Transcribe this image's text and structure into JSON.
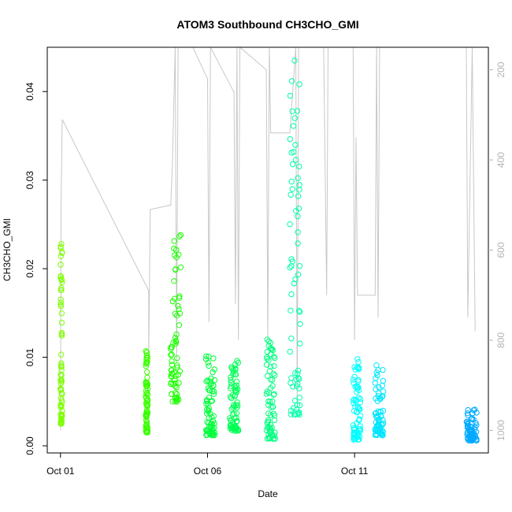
{
  "chart_data": {
    "type": "scatter",
    "title": "ATOM3 Southbound CH3CHO_GMI",
    "xlabel": "Date",
    "ylabel": "CH3CHO_GMI",
    "x_ticks": [
      {
        "day": 1,
        "label": "Oct 01"
      },
      {
        "day": 6,
        "label": "Oct 06"
      },
      {
        "day": 11,
        "label": "Oct 11"
      }
    ],
    "xlim": [
      0.55,
      15.55
    ],
    "ylim": [
      -0.0008,
      0.045
    ],
    "y_ticks": [
      "0.00",
      "0.01",
      "0.02",
      "0.03",
      "0.04"
    ],
    "y2_label_color": "#b3b3b3",
    "y2_ticks": [
      "200",
      "400",
      "600",
      "800",
      "1000"
    ],
    "y2_axis": {
      "label": "",
      "reversed": true,
      "lim": [
        150,
        1050
      ]
    },
    "series": [
      {
        "x_range": [
          1.0,
          1.06
        ],
        "ylow": 0.0025,
        "yhigh": 0.0228,
        "color": "#7FFF00"
      },
      {
        "x_range": [
          3.9,
          3.97
        ],
        "ylow": 0.0015,
        "yhigh": 0.0107,
        "color": "#39FF00"
      },
      {
        "x_range": [
          4.75,
          5.1
        ],
        "ylow": 0.005,
        "yhigh": 0.0238,
        "color": "#1CFF00"
      },
      {
        "x_range": [
          5.95,
          6.25
        ],
        "ylow": 0.0012,
        "yhigh": 0.0101,
        "color": "#00FF3A"
      },
      {
        "x_range": [
          6.75,
          7.05
        ],
        "ylow": 0.0017,
        "yhigh": 0.0096,
        "color": "#00FF55"
      },
      {
        "x_range": [
          8.0,
          8.3
        ],
        "ylow": 0.0008,
        "yhigh": 0.012,
        "color": "#00FF80"
      },
      {
        "x_range": [
          8.8,
          9.15
        ],
        "ylow": 0.0035,
        "yhigh": 0.0435,
        "color": "#00FFA8"
      },
      {
        "x_range": [
          10.95,
          11.2
        ],
        "ylow": 0.0007,
        "yhigh": 0.0098,
        "color": "#00FFFF"
      },
      {
        "x_range": [
          11.7,
          11.98
        ],
        "ylow": 0.0012,
        "yhigh": 0.0091,
        "color": "#00E5FF"
      },
      {
        "x_range": [
          14.8,
          15.15
        ],
        "ylow": 0.0006,
        "yhigh": 0.0041,
        "color": "#00AAFF"
      }
    ],
    "altitude_line": {
      "color": "#c8c8c8",
      "points": [
        [
          1.0,
          1000
        ],
        [
          1.02,
          500
        ],
        [
          1.06,
          310
        ],
        [
          4.0,
          690
        ],
        [
          4.0,
          850
        ],
        [
          4.05,
          510
        ],
        [
          4.75,
          500
        ],
        [
          4.8,
          420
        ],
        [
          4.9,
          150
        ],
        [
          4.95,
          850
        ],
        [
          5.0,
          150
        ],
        [
          5.5,
          150
        ],
        [
          6.0,
          220
        ],
        [
          6.05,
          760
        ],
        [
          6.1,
          150
        ],
        [
          6.9,
          250
        ],
        [
          6.95,
          720
        ],
        [
          7.0,
          150
        ],
        [
          7.05,
          800
        ],
        [
          7.1,
          150
        ],
        [
          8.0,
          200
        ],
        [
          8.05,
          800
        ],
        [
          8.1,
          150
        ],
        [
          8.15,
          340
        ],
        [
          8.8,
          340
        ],
        [
          9.0,
          150
        ],
        [
          9.05,
          950
        ],
        [
          9.1,
          150
        ],
        [
          9.95,
          150
        ],
        [
          10.05,
          700
        ],
        [
          10.1,
          150
        ],
        [
          10.95,
          150
        ],
        [
          11.0,
          800
        ],
        [
          11.05,
          350
        ],
        [
          11.1,
          700
        ],
        [
          11.7,
          700
        ],
        [
          11.75,
          150
        ],
        [
          11.8,
          750
        ],
        [
          11.85,
          150
        ],
        [
          14.8,
          150
        ],
        [
          14.85,
          750
        ],
        [
          15.0,
          150
        ],
        [
          15.1,
          780
        ]
      ]
    },
    "grid": false,
    "legend": "none"
  }
}
